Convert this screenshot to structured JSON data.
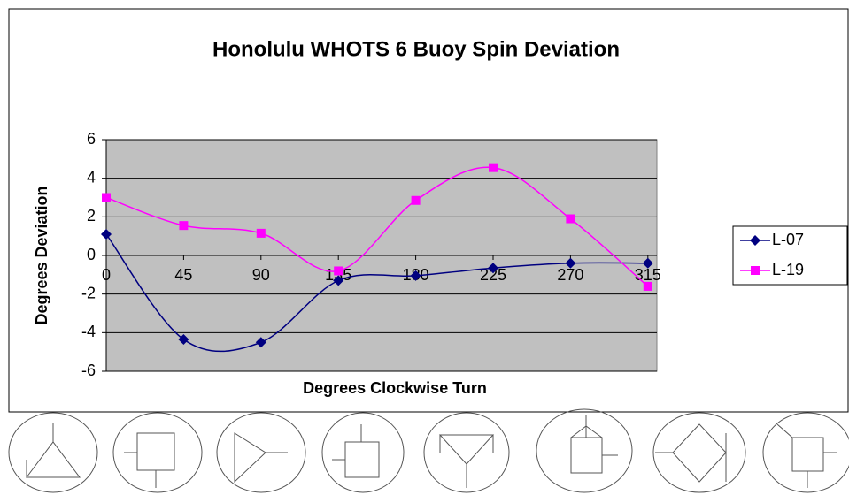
{
  "chart_data": {
    "type": "line",
    "title": "Honolulu WHOTS 6 Buoy Spin Deviation",
    "x_label": "Degrees Clockwise Turn",
    "y_label": "Degrees Deviation",
    "categories": [
      "0",
      "45",
      "90",
      "135",
      "180",
      "225",
      "270",
      "315"
    ],
    "series": [
      {
        "name": "L-07",
        "color": "#000080",
        "marker": "diamond",
        "values": [
          1.1,
          -4.35,
          -4.5,
          -1.3,
          -1.05,
          -0.65,
          -0.4,
          -0.4
        ]
      },
      {
        "name": "L-19",
        "color": "#ff00ff",
        "marker": "square",
        "values": [
          3.0,
          1.55,
          1.15,
          -0.8,
          2.85,
          4.55,
          1.9,
          -1.6
        ]
      }
    ],
    "ylim": [
      -6,
      6
    ],
    "yticks": [
      -6,
      -4,
      -2,
      0,
      2,
      4,
      6
    ],
    "grid": true,
    "smooth": true,
    "legend": "right"
  }
}
